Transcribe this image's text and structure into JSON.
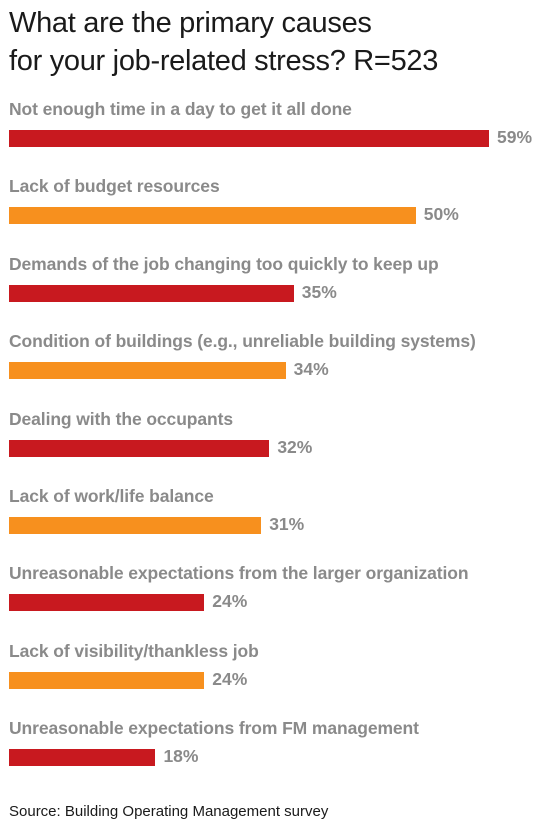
{
  "title_lines": [
    "What are the primary causes",
    "for your job-related stress? R=523"
  ],
  "source": "Source: Building Operating Management survey",
  "colors": {
    "red": "#c8191f",
    "orange": "#f7901e",
    "text": "#8a8a8a"
  },
  "chart_data": {
    "type": "bar",
    "orientation": "horizontal",
    "title": "What are the primary causes for your job-related stress? R=523",
    "categories": [
      "Not enough time in a day to get it all done",
      "Lack of budget resources",
      "Demands of the job changing too quickly to keep up",
      "Condition of buildings (e.g., unreliable building systems)",
      "Dealing with the occupants",
      "Lack of work/life balance",
      "Unreasonable expectations from the larger organization",
      "Lack of visibility/thankless job",
      "Unreasonable expectations from FM management"
    ],
    "values": [
      59,
      50,
      35,
      34,
      32,
      31,
      24,
      24,
      18
    ],
    "value_labels": [
      "59%",
      "50%",
      "35%",
      "34%",
      "32%",
      "31%",
      "24%",
      "24%",
      "18%"
    ],
    "bar_colors": [
      "red",
      "orange",
      "red",
      "orange",
      "red",
      "orange",
      "red",
      "orange",
      "red"
    ],
    "unit": "%",
    "grid": false,
    "legend": "none"
  }
}
